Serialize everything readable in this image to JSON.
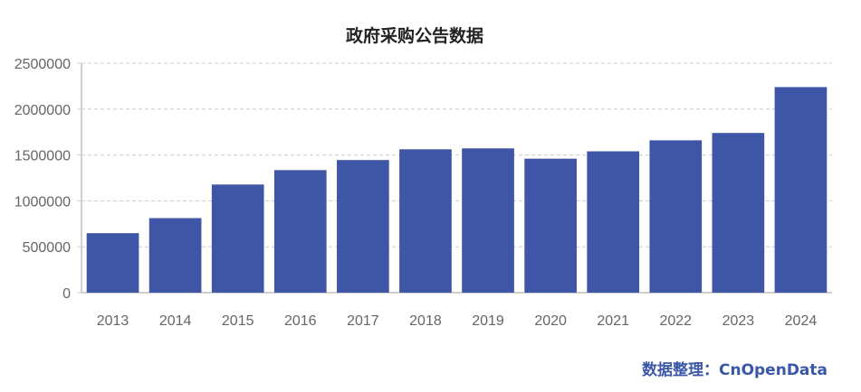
{
  "chart_data": {
    "type": "bar",
    "title": "政府采购公告数据",
    "categories": [
      "2013",
      "2014",
      "2015",
      "2016",
      "2017",
      "2018",
      "2019",
      "2020",
      "2021",
      "2022",
      "2023",
      "2024"
    ],
    "series": [
      {
        "values": [
          648000,
          812000,
          1178000,
          1335000,
          1445000,
          1562000,
          1572000,
          1460000,
          1540000,
          1660000,
          1740000,
          2240000
        ],
        "color": "#3f55a5"
      }
    ],
    "y_ticks": [
      "0",
      "500000",
      "1000000",
      "1500000",
      "2000000",
      "2500000"
    ],
    "ylim": [
      0,
      2500000
    ],
    "grid": true,
    "grid_style": "dashed",
    "legend": "none"
  },
  "source_text": "数据整理：CnOpenData",
  "colors": {
    "bar": "#3f55a5",
    "source_text": "#3a57a8",
    "grid": "#cccccc",
    "axis": "#cfcfcf"
  }
}
